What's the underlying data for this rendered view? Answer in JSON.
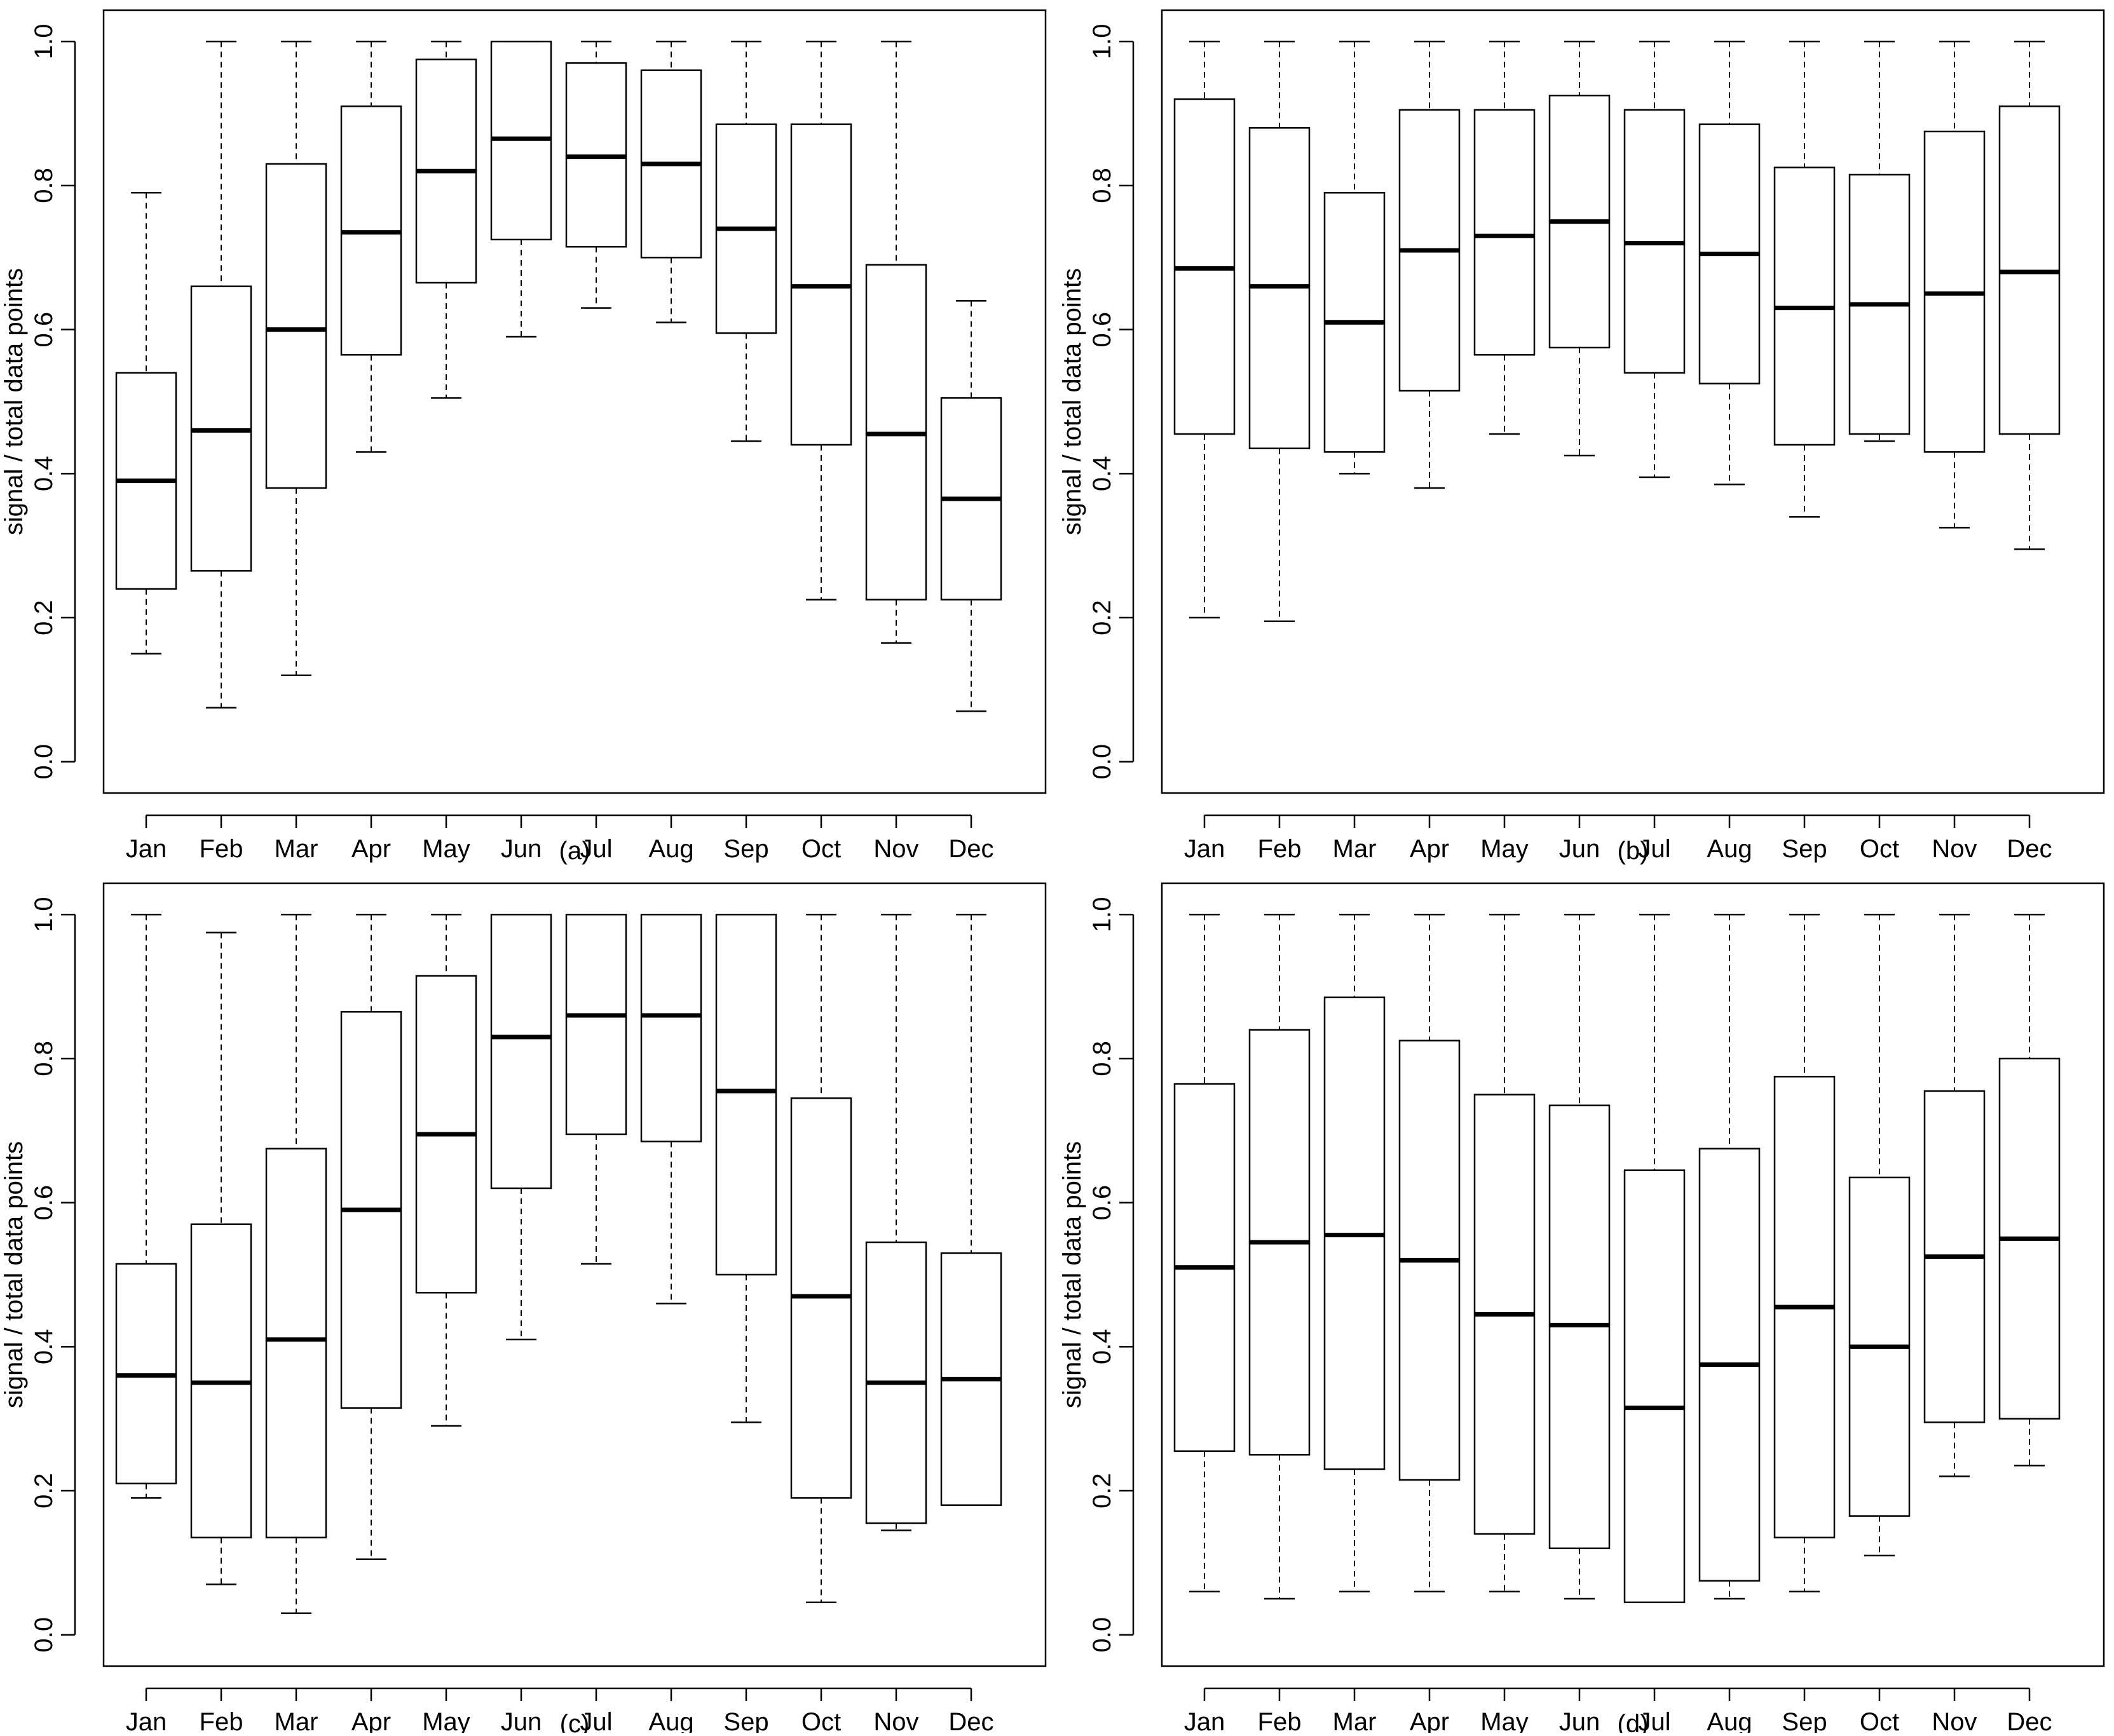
{
  "figure": {
    "ylabel": "signal / total data points",
    "months": [
      "Jan",
      "Feb",
      "Mar",
      "Apr",
      "May",
      "Jun",
      "Jul",
      "Aug",
      "Sep",
      "Oct",
      "Nov",
      "Dec"
    ],
    "yticks": [
      "0.0",
      "0.2",
      "0.4",
      "0.6",
      "0.8",
      "1.0"
    ]
  },
  "chart_data": [
    {
      "type": "box",
      "label": "(a)",
      "ylabel": "signal / total data points",
      "ylim": [
        0,
        1
      ],
      "categories": [
        "Jan",
        "Feb",
        "Mar",
        "Apr",
        "May",
        "Jun",
        "Jul",
        "Aug",
        "Sep",
        "Oct",
        "Nov",
        "Dec"
      ],
      "boxes": [
        {
          "min": 0.15,
          "q1": 0.24,
          "median": 0.39,
          "q3": 0.54,
          "max": 0.79
        },
        {
          "min": 0.075,
          "q1": 0.265,
          "median": 0.46,
          "q3": 0.66,
          "max": 1.0
        },
        {
          "min": 0.12,
          "q1": 0.38,
          "median": 0.6,
          "q3": 0.83,
          "max": 1.0
        },
        {
          "min": 0.43,
          "q1": 0.565,
          "median": 0.735,
          "q3": 0.91,
          "max": 1.0
        },
        {
          "min": 0.505,
          "q1": 0.665,
          "median": 0.82,
          "q3": 0.975,
          "max": 1.0
        },
        {
          "min": 0.59,
          "q1": 0.725,
          "median": 0.865,
          "q3": 1.0,
          "max": 1.0
        },
        {
          "min": 0.63,
          "q1": 0.715,
          "median": 0.84,
          "q3": 0.97,
          "max": 1.0
        },
        {
          "min": 0.61,
          "q1": 0.7,
          "median": 0.83,
          "q3": 0.96,
          "max": 1.0
        },
        {
          "min": 0.445,
          "q1": 0.595,
          "median": 0.74,
          "q3": 0.885,
          "max": 1.0
        },
        {
          "min": 0.225,
          "q1": 0.44,
          "median": 0.66,
          "q3": 0.885,
          "max": 1.0
        },
        {
          "min": 0.165,
          "q1": 0.225,
          "median": 0.455,
          "q3": 0.69,
          "max": 1.0
        },
        {
          "min": 0.07,
          "q1": 0.225,
          "median": 0.365,
          "q3": 0.505,
          "max": 0.64
        }
      ]
    },
    {
      "type": "box",
      "label": "(b)",
      "ylabel": "signal / total data points",
      "ylim": [
        0,
        1
      ],
      "categories": [
        "Jan",
        "Feb",
        "Mar",
        "Apr",
        "May",
        "Jun",
        "Jul",
        "Aug",
        "Sep",
        "Oct",
        "Nov",
        "Dec"
      ],
      "boxes": [
        {
          "min": 0.2,
          "q1": 0.455,
          "median": 0.685,
          "q3": 0.92,
          "max": 1.0
        },
        {
          "min": 0.195,
          "q1": 0.435,
          "median": 0.66,
          "q3": 0.88,
          "max": 1.0
        },
        {
          "min": 0.4,
          "q1": 0.43,
          "median": 0.61,
          "q3": 0.79,
          "max": 1.0
        },
        {
          "min": 0.38,
          "q1": 0.515,
          "median": 0.71,
          "q3": 0.905,
          "max": 1.0
        },
        {
          "min": 0.455,
          "q1": 0.565,
          "median": 0.73,
          "q3": 0.905,
          "max": 1.0
        },
        {
          "min": 0.425,
          "q1": 0.575,
          "median": 0.75,
          "q3": 0.925,
          "max": 1.0
        },
        {
          "min": 0.395,
          "q1": 0.54,
          "median": 0.72,
          "q3": 0.905,
          "max": 1.0
        },
        {
          "min": 0.385,
          "q1": 0.525,
          "median": 0.705,
          "q3": 0.885,
          "max": 1.0
        },
        {
          "min": 0.34,
          "q1": 0.44,
          "median": 0.63,
          "q3": 0.825,
          "max": 1.0
        },
        {
          "min": 0.445,
          "q1": 0.455,
          "median": 0.635,
          "q3": 0.815,
          "max": 1.0
        },
        {
          "min": 0.325,
          "q1": 0.43,
          "median": 0.65,
          "q3": 0.875,
          "max": 1.0
        },
        {
          "min": 0.295,
          "q1": 0.455,
          "median": 0.68,
          "q3": 0.91,
          "max": 1.0
        }
      ]
    },
    {
      "type": "box",
      "label": "(c)",
      "ylabel": "signal / total data points",
      "ylim": [
        0,
        1
      ],
      "categories": [
        "Jan",
        "Feb",
        "Mar",
        "Apr",
        "May",
        "Jun",
        "Jul",
        "Aug",
        "Sep",
        "Oct",
        "Nov",
        "Dec"
      ],
      "boxes": [
        {
          "min": 0.19,
          "q1": 0.21,
          "median": 0.36,
          "q3": 0.515,
          "max": 1.0
        },
        {
          "min": 0.07,
          "q1": 0.135,
          "median": 0.35,
          "q3": 0.57,
          "max": 0.975
        },
        {
          "min": 0.03,
          "q1": 0.135,
          "median": 0.41,
          "q3": 0.675,
          "max": 1.0
        },
        {
          "min": 0.105,
          "q1": 0.315,
          "median": 0.59,
          "q3": 0.865,
          "max": 1.0
        },
        {
          "min": 0.29,
          "q1": 0.475,
          "median": 0.695,
          "q3": 0.915,
          "max": 1.0
        },
        {
          "min": 0.41,
          "q1": 0.62,
          "median": 0.83,
          "q3": 1.0,
          "max": 1.0
        },
        {
          "min": 0.515,
          "q1": 0.695,
          "median": 0.86,
          "q3": 1.0,
          "max": 1.0
        },
        {
          "min": 0.46,
          "q1": 0.685,
          "median": 0.86,
          "q3": 1.0,
          "max": 1.0
        },
        {
          "min": 0.295,
          "q1": 0.5,
          "median": 0.755,
          "q3": 1.0,
          "max": 1.0
        },
        {
          "min": 0.045,
          "q1": 0.19,
          "median": 0.47,
          "q3": 0.745,
          "max": 1.0
        },
        {
          "min": 0.145,
          "q1": 0.155,
          "median": 0.35,
          "q3": 0.545,
          "max": 1.0
        },
        {
          "min": 0.18,
          "q1": 0.18,
          "median": 0.355,
          "q3": 0.53,
          "max": 1.0
        }
      ]
    },
    {
      "type": "box",
      "label": "(d)",
      "ylabel": "signal / total data points",
      "ylim": [
        0,
        1
      ],
      "categories": [
        "Jan",
        "Feb",
        "Mar",
        "Apr",
        "May",
        "Jun",
        "Jul",
        "Aug",
        "Sep",
        "Oct",
        "Nov",
        "Dec"
      ],
      "boxes": [
        {
          "min": 0.06,
          "q1": 0.255,
          "median": 0.51,
          "q3": 0.765,
          "max": 1.0
        },
        {
          "min": 0.05,
          "q1": 0.25,
          "median": 0.545,
          "q3": 0.84,
          "max": 1.0
        },
        {
          "min": 0.06,
          "q1": 0.23,
          "median": 0.555,
          "q3": 0.885,
          "max": 1.0
        },
        {
          "min": 0.06,
          "q1": 0.215,
          "median": 0.52,
          "q3": 0.825,
          "max": 1.0
        },
        {
          "min": 0.06,
          "q1": 0.14,
          "median": 0.445,
          "q3": 0.75,
          "max": 1.0
        },
        {
          "min": 0.05,
          "q1": 0.12,
          "median": 0.43,
          "q3": 0.735,
          "max": 1.0
        },
        {
          "min": 0.045,
          "q1": 0.045,
          "median": 0.315,
          "q3": 0.645,
          "max": 1.0
        },
        {
          "min": 0.05,
          "q1": 0.075,
          "median": 0.375,
          "q3": 0.675,
          "max": 1.0
        },
        {
          "min": 0.06,
          "q1": 0.135,
          "median": 0.455,
          "q3": 0.775,
          "max": 1.0
        },
        {
          "min": 0.11,
          "q1": 0.165,
          "median": 0.4,
          "q3": 0.635,
          "max": 1.0
        },
        {
          "min": 0.22,
          "q1": 0.295,
          "median": 0.525,
          "q3": 0.755,
          "max": 1.0
        },
        {
          "min": 0.235,
          "q1": 0.3,
          "median": 0.55,
          "q3": 0.8,
          "max": 1.0
        }
      ]
    }
  ]
}
